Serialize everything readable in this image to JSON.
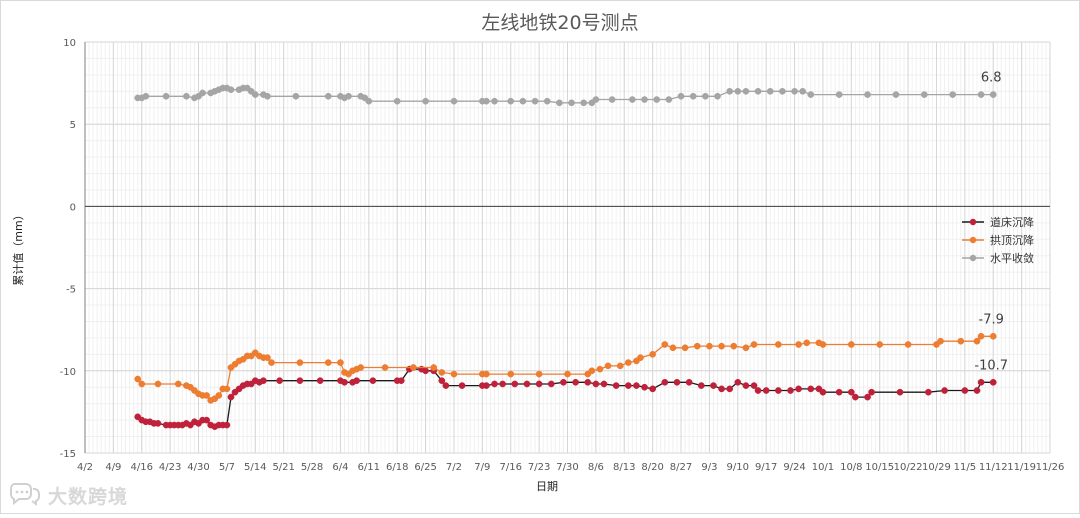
{
  "chart_data": {
    "type": "line",
    "title": "左线地铁20号测点",
    "xlabel": "日期",
    "ylabel": "累计值（mm）",
    "ylim": [
      -15,
      10
    ],
    "yticks": [
      10,
      5,
      0,
      -5,
      -10,
      -15
    ],
    "xlim": [
      "2019-04-02",
      "2019-11-26"
    ],
    "x_tick_labels": [
      "4/2",
      "4/9",
      "4/16",
      "4/23",
      "4/30",
      "5/7",
      "5/14",
      "5/21",
      "5/28",
      "6/4",
      "6/11",
      "6/18",
      "6/25",
      "7/2",
      "7/9",
      "7/16",
      "7/23",
      "7/30",
      "8/6",
      "8/13",
      "8/20",
      "8/27",
      "9/3",
      "9/10",
      "9/17",
      "9/24",
      "10/1",
      "10/8",
      "10/15",
      "10/22",
      "10/29",
      "11/5",
      "11/12",
      "11/19",
      "11/26"
    ],
    "grid": true,
    "legend_position": "right",
    "series": [
      {
        "name": "道床沉降",
        "color": "#C0213A",
        "line_color": "#1a1a1a",
        "points": [
          [
            "2019-04-15",
            -12.8
          ],
          [
            "2019-04-16",
            -13.0
          ],
          [
            "2019-04-17",
            -13.1
          ],
          [
            "2019-04-18",
            -13.1
          ],
          [
            "2019-04-19",
            -13.2
          ],
          [
            "2019-04-20",
            -13.2
          ],
          [
            "2019-04-22",
            -13.3
          ],
          [
            "2019-04-23",
            -13.3
          ],
          [
            "2019-04-24",
            -13.3
          ],
          [
            "2019-04-25",
            -13.3
          ],
          [
            "2019-04-26",
            -13.3
          ],
          [
            "2019-04-27",
            -13.2
          ],
          [
            "2019-04-28",
            -13.3
          ],
          [
            "2019-04-29",
            -13.1
          ],
          [
            "2019-04-30",
            -13.2
          ],
          [
            "2019-05-01",
            -13.0
          ],
          [
            "2019-05-02",
            -13.0
          ],
          [
            "2019-05-03",
            -13.3
          ],
          [
            "2019-05-04",
            -13.4
          ],
          [
            "2019-05-05",
            -13.3
          ],
          [
            "2019-05-06",
            -13.3
          ],
          [
            "2019-05-07",
            -13.3
          ],
          [
            "2019-05-08",
            -11.6
          ],
          [
            "2019-05-09",
            -11.3
          ],
          [
            "2019-05-10",
            -11.1
          ],
          [
            "2019-05-11",
            -10.9
          ],
          [
            "2019-05-12",
            -10.8
          ],
          [
            "2019-05-13",
            -10.8
          ],
          [
            "2019-05-14",
            -10.6
          ],
          [
            "2019-05-15",
            -10.7
          ],
          [
            "2019-05-16",
            -10.6
          ],
          [
            "2019-05-20",
            -10.6
          ],
          [
            "2019-05-25",
            -10.6
          ],
          [
            "2019-05-30",
            -10.6
          ],
          [
            "2019-06-04",
            -10.6
          ],
          [
            "2019-06-05",
            -10.7
          ],
          [
            "2019-06-07",
            -10.7
          ],
          [
            "2019-06-08",
            -10.6
          ],
          [
            "2019-06-12",
            -10.6
          ],
          [
            "2019-06-18",
            -10.6
          ],
          [
            "2019-06-19",
            -10.6
          ],
          [
            "2019-06-21",
            -9.9
          ],
          [
            "2019-06-24",
            -9.9
          ],
          [
            "2019-06-25",
            -10.0
          ],
          [
            "2019-06-27",
            -10.0
          ],
          [
            "2019-06-29",
            -10.6
          ],
          [
            "2019-06-30",
            -10.9
          ],
          [
            "2019-07-04",
            -10.9
          ],
          [
            "2019-07-09",
            -10.9
          ],
          [
            "2019-07-10",
            -10.9
          ],
          [
            "2019-07-12",
            -10.8
          ],
          [
            "2019-07-14",
            -10.8
          ],
          [
            "2019-07-17",
            -10.8
          ],
          [
            "2019-07-20",
            -10.8
          ],
          [
            "2019-07-23",
            -10.8
          ],
          [
            "2019-07-26",
            -10.8
          ],
          [
            "2019-07-29",
            -10.7
          ],
          [
            "2019-08-01",
            -10.7
          ],
          [
            "2019-08-04",
            -10.7
          ],
          [
            "2019-08-06",
            -10.8
          ],
          [
            "2019-08-08",
            -10.8
          ],
          [
            "2019-08-11",
            -10.9
          ],
          [
            "2019-08-14",
            -10.9
          ],
          [
            "2019-08-16",
            -10.9
          ],
          [
            "2019-08-18",
            -11.0
          ],
          [
            "2019-08-20",
            -11.1
          ],
          [
            "2019-08-23",
            -10.7
          ],
          [
            "2019-08-26",
            -10.7
          ],
          [
            "2019-08-29",
            -10.7
          ],
          [
            "2019-09-01",
            -10.9
          ],
          [
            "2019-09-04",
            -10.9
          ],
          [
            "2019-09-06",
            -11.1
          ],
          [
            "2019-09-08",
            -11.1
          ],
          [
            "2019-09-10",
            -10.7
          ],
          [
            "2019-09-12",
            -10.9
          ],
          [
            "2019-09-14",
            -10.9
          ],
          [
            "2019-09-15",
            -11.2
          ],
          [
            "2019-09-17",
            -11.2
          ],
          [
            "2019-09-20",
            -11.2
          ],
          [
            "2019-09-23",
            -11.2
          ],
          [
            "2019-09-25",
            -11.1
          ],
          [
            "2019-09-28",
            -11.1
          ],
          [
            "2019-09-30",
            -11.1
          ],
          [
            "2019-10-01",
            -11.3
          ],
          [
            "2019-10-05",
            -11.3
          ],
          [
            "2019-10-08",
            -11.3
          ],
          [
            "2019-10-09",
            -11.6
          ],
          [
            "2019-10-12",
            -11.6
          ],
          [
            "2019-10-13",
            -11.3
          ],
          [
            "2019-10-20",
            -11.3
          ],
          [
            "2019-10-27",
            -11.3
          ],
          [
            "2019-10-31",
            -11.2
          ],
          [
            "2019-11-05",
            -11.2
          ],
          [
            "2019-11-08",
            -11.2
          ],
          [
            "2019-11-09",
            -10.7
          ],
          [
            "2019-11-12",
            -10.7
          ]
        ]
      },
      {
        "name": "拱顶沉降",
        "color": "#ED7D31",
        "line_color": "#ED7D31",
        "points": [
          [
            "2019-04-15",
            -10.5
          ],
          [
            "2019-04-16",
            -10.8
          ],
          [
            "2019-04-20",
            -10.8
          ],
          [
            "2019-04-25",
            -10.8
          ],
          [
            "2019-04-27",
            -10.9
          ],
          [
            "2019-04-28",
            -11.0
          ],
          [
            "2019-04-29",
            -11.2
          ],
          [
            "2019-04-30",
            -11.4
          ],
          [
            "2019-05-01",
            -11.5
          ],
          [
            "2019-05-02",
            -11.5
          ],
          [
            "2019-05-03",
            -11.8
          ],
          [
            "2019-05-04",
            -11.7
          ],
          [
            "2019-05-05",
            -11.5
          ],
          [
            "2019-05-06",
            -11.1
          ],
          [
            "2019-05-07",
            -11.1
          ],
          [
            "2019-05-08",
            -9.8
          ],
          [
            "2019-05-09",
            -9.6
          ],
          [
            "2019-05-10",
            -9.4
          ],
          [
            "2019-05-11",
            -9.3
          ],
          [
            "2019-05-12",
            -9.1
          ],
          [
            "2019-05-13",
            -9.1
          ],
          [
            "2019-05-14",
            -8.9
          ],
          [
            "2019-05-15",
            -9.1
          ],
          [
            "2019-05-16",
            -9.2
          ],
          [
            "2019-05-17",
            -9.2
          ],
          [
            "2019-05-18",
            -9.5
          ],
          [
            "2019-05-25",
            -9.5
          ],
          [
            "2019-06-01",
            -9.5
          ],
          [
            "2019-06-04",
            -9.5
          ],
          [
            "2019-06-05",
            -10.1
          ],
          [
            "2019-06-06",
            -10.2
          ],
          [
            "2019-06-07",
            -10.0
          ],
          [
            "2019-06-08",
            -9.9
          ],
          [
            "2019-06-09",
            -9.8
          ],
          [
            "2019-06-15",
            -9.8
          ],
          [
            "2019-06-22",
            -9.8
          ],
          [
            "2019-06-27",
            -9.8
          ],
          [
            "2019-06-29",
            -10.1
          ],
          [
            "2019-07-02",
            -10.2
          ],
          [
            "2019-07-09",
            -10.2
          ],
          [
            "2019-07-10",
            -10.2
          ],
          [
            "2019-07-16",
            -10.2
          ],
          [
            "2019-07-23",
            -10.2
          ],
          [
            "2019-07-30",
            -10.2
          ],
          [
            "2019-08-04",
            -10.2
          ],
          [
            "2019-08-05",
            -10.0
          ],
          [
            "2019-08-07",
            -9.9
          ],
          [
            "2019-08-09",
            -9.7
          ],
          [
            "2019-08-12",
            -9.7
          ],
          [
            "2019-08-14",
            -9.5
          ],
          [
            "2019-08-16",
            -9.4
          ],
          [
            "2019-08-17",
            -9.2
          ],
          [
            "2019-08-20",
            -9.0
          ],
          [
            "2019-08-23",
            -8.4
          ],
          [
            "2019-08-25",
            -8.6
          ],
          [
            "2019-08-28",
            -8.6
          ],
          [
            "2019-08-31",
            -8.5
          ],
          [
            "2019-09-03",
            -8.5
          ],
          [
            "2019-09-06",
            -8.5
          ],
          [
            "2019-09-09",
            -8.5
          ],
          [
            "2019-09-12",
            -8.6
          ],
          [
            "2019-09-14",
            -8.4
          ],
          [
            "2019-09-20",
            -8.4
          ],
          [
            "2019-09-25",
            -8.4
          ],
          [
            "2019-09-27",
            -8.3
          ],
          [
            "2019-09-30",
            -8.3
          ],
          [
            "2019-10-01",
            -8.4
          ],
          [
            "2019-10-08",
            -8.4
          ],
          [
            "2019-10-15",
            -8.4
          ],
          [
            "2019-10-22",
            -8.4
          ],
          [
            "2019-10-29",
            -8.4
          ],
          [
            "2019-10-30",
            -8.2
          ],
          [
            "2019-11-04",
            -8.2
          ],
          [
            "2019-11-08",
            -8.2
          ],
          [
            "2019-11-09",
            -7.9
          ],
          [
            "2019-11-12",
            -7.9
          ]
        ]
      },
      {
        "name": "水平收敛",
        "color": "#A5A5A5",
        "line_color": "#A5A5A5",
        "points": [
          [
            "2019-04-15",
            6.6
          ],
          [
            "2019-04-16",
            6.6
          ],
          [
            "2019-04-17",
            6.7
          ],
          [
            "2019-04-22",
            6.7
          ],
          [
            "2019-04-27",
            6.7
          ],
          [
            "2019-04-29",
            6.6
          ],
          [
            "2019-04-30",
            6.7
          ],
          [
            "2019-05-01",
            6.9
          ],
          [
            "2019-05-03",
            6.9
          ],
          [
            "2019-05-04",
            7.0
          ],
          [
            "2019-05-05",
            7.1
          ],
          [
            "2019-05-06",
            7.2
          ],
          [
            "2019-05-07",
            7.2
          ],
          [
            "2019-05-08",
            7.1
          ],
          [
            "2019-05-10",
            7.1
          ],
          [
            "2019-05-11",
            7.2
          ],
          [
            "2019-05-12",
            7.2
          ],
          [
            "2019-05-13",
            7.0
          ],
          [
            "2019-05-14",
            6.8
          ],
          [
            "2019-05-16",
            6.8
          ],
          [
            "2019-05-17",
            6.7
          ],
          [
            "2019-05-24",
            6.7
          ],
          [
            "2019-06-01",
            6.7
          ],
          [
            "2019-06-04",
            6.7
          ],
          [
            "2019-06-05",
            6.6
          ],
          [
            "2019-06-06",
            6.7
          ],
          [
            "2019-06-09",
            6.7
          ],
          [
            "2019-06-10",
            6.6
          ],
          [
            "2019-06-11",
            6.4
          ],
          [
            "2019-06-18",
            6.4
          ],
          [
            "2019-06-25",
            6.4
          ],
          [
            "2019-07-02",
            6.4
          ],
          [
            "2019-07-09",
            6.4
          ],
          [
            "2019-07-10",
            6.4
          ],
          [
            "2019-07-12",
            6.4
          ],
          [
            "2019-07-16",
            6.4
          ],
          [
            "2019-07-19",
            6.4
          ],
          [
            "2019-07-22",
            6.4
          ],
          [
            "2019-07-25",
            6.4
          ],
          [
            "2019-07-28",
            6.3
          ],
          [
            "2019-07-31",
            6.3
          ],
          [
            "2019-08-03",
            6.3
          ],
          [
            "2019-08-05",
            6.3
          ],
          [
            "2019-08-06",
            6.5
          ],
          [
            "2019-08-10",
            6.5
          ],
          [
            "2019-08-15",
            6.5
          ],
          [
            "2019-08-18",
            6.5
          ],
          [
            "2019-08-21",
            6.5
          ],
          [
            "2019-08-24",
            6.5
          ],
          [
            "2019-08-27",
            6.7
          ],
          [
            "2019-08-30",
            6.7
          ],
          [
            "2019-09-02",
            6.7
          ],
          [
            "2019-09-05",
            6.7
          ],
          [
            "2019-09-08",
            7.0
          ],
          [
            "2019-09-10",
            7.0
          ],
          [
            "2019-09-12",
            7.0
          ],
          [
            "2019-09-15",
            7.0
          ],
          [
            "2019-09-18",
            7.0
          ],
          [
            "2019-09-21",
            7.0
          ],
          [
            "2019-09-24",
            7.0
          ],
          [
            "2019-09-26",
            7.0
          ],
          [
            "2019-09-28",
            6.8
          ],
          [
            "2019-10-05",
            6.8
          ],
          [
            "2019-10-12",
            6.8
          ],
          [
            "2019-10-19",
            6.8
          ],
          [
            "2019-10-26",
            6.8
          ],
          [
            "2019-11-02",
            6.8
          ],
          [
            "2019-11-09",
            6.8
          ],
          [
            "2019-11-12",
            6.8
          ]
        ]
      }
    ],
    "annotations": [
      {
        "text": "6.8",
        "x": "2019-11-12",
        "y": 6.8
      },
      {
        "text": "-7.9",
        "x": "2019-11-12",
        "y": -7.9
      },
      {
        "text": "-10.7",
        "x": "2019-11-12",
        "y": -10.7
      }
    ]
  },
  "watermark": {
    "text": "大数跨境",
    "icon": "chat-bubbles-icon"
  }
}
